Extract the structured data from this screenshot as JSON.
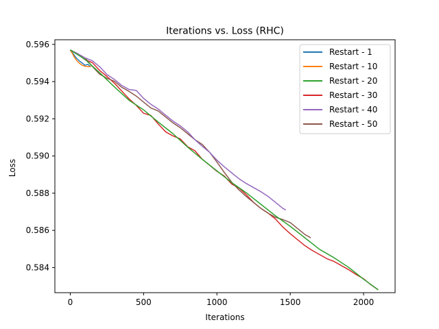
{
  "chart_data": {
    "type": "line",
    "title": "Iterations vs. Loss (RHC)",
    "xlabel": "Iterations",
    "ylabel": "Loss",
    "xlim": [
      -105,
      2215
    ],
    "ylim": [
      0.58265,
      0.59625
    ],
    "xticks": [
      0,
      500,
      1000,
      1500,
      2000
    ],
    "yticks": [
      0.584,
      0.586,
      0.588,
      0.59,
      0.592,
      0.594,
      0.596
    ],
    "ytick_labels": [
      "0.584",
      "0.586",
      "0.588",
      "0.590",
      "0.592",
      "0.594",
      "0.596"
    ],
    "grid": false,
    "legend_position": "top-right",
    "series": [
      {
        "name": "Restart - 1",
        "color": "#1f77b4",
        "points": [
          [
            0,
            0.5957
          ],
          [
            20,
            0.5955
          ],
          [
            40,
            0.5953
          ],
          [
            60,
            0.5951
          ],
          [
            80,
            0.595
          ],
          [
            100,
            0.5949
          ],
          [
            120,
            0.5949
          ],
          [
            140,
            0.5948
          ]
        ]
      },
      {
        "name": "Restart - 10",
        "color": "#ff7f0e",
        "points": [
          [
            0,
            0.5957
          ],
          [
            15,
            0.5955
          ],
          [
            30,
            0.5953
          ],
          [
            45,
            0.5951
          ],
          [
            60,
            0.595
          ],
          [
            80,
            0.5949
          ],
          [
            100,
            0.5948
          ],
          [
            120,
            0.5948
          ],
          [
            140,
            0.5948
          ]
        ]
      },
      {
        "name": "Restart - 20",
        "color": "#2ca02c",
        "points": [
          [
            0,
            0.5957
          ],
          [
            100,
            0.5952
          ],
          [
            200,
            0.5945
          ],
          [
            300,
            0.5937
          ],
          [
            400,
            0.593
          ],
          [
            500,
            0.5925
          ],
          [
            600,
            0.5918
          ],
          [
            700,
            0.5912
          ],
          [
            800,
            0.5905
          ],
          [
            900,
            0.5898
          ],
          [
            1000,
            0.5892
          ],
          [
            1100,
            0.5886
          ],
          [
            1200,
            0.588
          ],
          [
            1300,
            0.5874
          ],
          [
            1400,
            0.5868
          ],
          [
            1500,
            0.5862
          ],
          [
            1600,
            0.5856
          ],
          [
            1700,
            0.585
          ],
          [
            1800,
            0.5845
          ],
          [
            1900,
            0.584
          ],
          [
            2000,
            0.5834
          ],
          [
            2100,
            0.5828
          ]
        ]
      },
      {
        "name": "Restart - 30",
        "color": "#d62728",
        "points": [
          [
            0,
            0.5957
          ],
          [
            50,
            0.5955
          ],
          [
            100,
            0.5952
          ],
          [
            150,
            0.595
          ],
          [
            200,
            0.5946
          ],
          [
            250,
            0.5943
          ],
          [
            300,
            0.5939
          ],
          [
            350,
            0.5935
          ],
          [
            400,
            0.5931
          ],
          [
            450,
            0.5927
          ],
          [
            500,
            0.5923
          ],
          [
            550,
            0.5922
          ],
          [
            600,
            0.5917
          ],
          [
            650,
            0.5913
          ],
          [
            700,
            0.5911
          ],
          [
            750,
            0.5909
          ],
          [
            800,
            0.5905
          ],
          [
            850,
            0.5903
          ],
          [
            900,
            0.5898
          ],
          [
            950,
            0.5895
          ],
          [
            1000,
            0.5892
          ],
          [
            1050,
            0.5889
          ],
          [
            1100,
            0.5885
          ],
          [
            1150,
            0.5883
          ],
          [
            1200,
            0.5879
          ],
          [
            1250,
            0.5875
          ],
          [
            1300,
            0.5872
          ],
          [
            1350,
            0.5869
          ],
          [
            1400,
            0.5866
          ],
          [
            1450,
            0.5862
          ],
          [
            1500,
            0.5858
          ],
          [
            1550,
            0.5855
          ],
          [
            1600,
            0.5852
          ],
          [
            1650,
            0.5849
          ],
          [
            1700,
            0.5847
          ],
          [
            1750,
            0.5845
          ],
          [
            1800,
            0.5843
          ],
          [
            1850,
            0.5841
          ],
          [
            1900,
            0.5839
          ],
          [
            1950,
            0.5836
          ],
          [
            2000,
            0.5834
          ],
          [
            2050,
            0.5831
          ],
          [
            2100,
            0.5828
          ]
        ]
      },
      {
        "name": "Restart - 40",
        "color": "#9467bd",
        "points": [
          [
            0,
            0.5957
          ],
          [
            50,
            0.5955
          ],
          [
            100,
            0.5953
          ],
          [
            150,
            0.5951
          ],
          [
            200,
            0.5948
          ],
          [
            250,
            0.5944
          ],
          [
            300,
            0.5941
          ],
          [
            350,
            0.5938
          ],
          [
            400,
            0.5936
          ],
          [
            450,
            0.5935
          ],
          [
            500,
            0.5931
          ],
          [
            550,
            0.5928
          ],
          [
            600,
            0.5925
          ],
          [
            650,
            0.5922
          ],
          [
            700,
            0.5919
          ],
          [
            750,
            0.5916
          ],
          [
            800,
            0.5913
          ],
          [
            850,
            0.5909
          ],
          [
            900,
            0.5905
          ],
          [
            950,
            0.5902
          ],
          [
            1000,
            0.5898
          ],
          [
            1050,
            0.5894
          ],
          [
            1100,
            0.5891
          ],
          [
            1150,
            0.5888
          ],
          [
            1200,
            0.5885
          ],
          [
            1250,
            0.5883
          ],
          [
            1300,
            0.5881
          ],
          [
            1350,
            0.5878
          ],
          [
            1400,
            0.5875
          ],
          [
            1450,
            0.5872
          ],
          [
            1470,
            0.5871
          ]
        ]
      },
      {
        "name": "Restart - 50",
        "color": "#8c564b",
        "points": [
          [
            0,
            0.5957
          ],
          [
            50,
            0.5955
          ],
          [
            100,
            0.5953
          ],
          [
            150,
            0.5948
          ],
          [
            200,
            0.5944
          ],
          [
            250,
            0.5942
          ],
          [
            300,
            0.594
          ],
          [
            350,
            0.5937
          ],
          [
            400,
            0.5935
          ],
          [
            450,
            0.5932
          ],
          [
            500,
            0.5929
          ],
          [
            550,
            0.5926
          ],
          [
            600,
            0.5924
          ],
          [
            650,
            0.5921
          ],
          [
            700,
            0.5918
          ],
          [
            750,
            0.5915
          ],
          [
            800,
            0.5912
          ],
          [
            850,
            0.5909
          ],
          [
            900,
            0.5906
          ],
          [
            950,
            0.5902
          ],
          [
            1000,
            0.5897
          ],
          [
            1050,
            0.5891
          ],
          [
            1100,
            0.5886
          ],
          [
            1150,
            0.5882
          ],
          [
            1200,
            0.5878
          ],
          [
            1250,
            0.5875
          ],
          [
            1300,
            0.5872
          ],
          [
            1350,
            0.5869
          ],
          [
            1400,
            0.5867
          ],
          [
            1450,
            0.5866
          ],
          [
            1500,
            0.5864
          ],
          [
            1550,
            0.5861
          ],
          [
            1600,
            0.5858
          ],
          [
            1640,
            0.5856
          ]
        ]
      }
    ]
  }
}
